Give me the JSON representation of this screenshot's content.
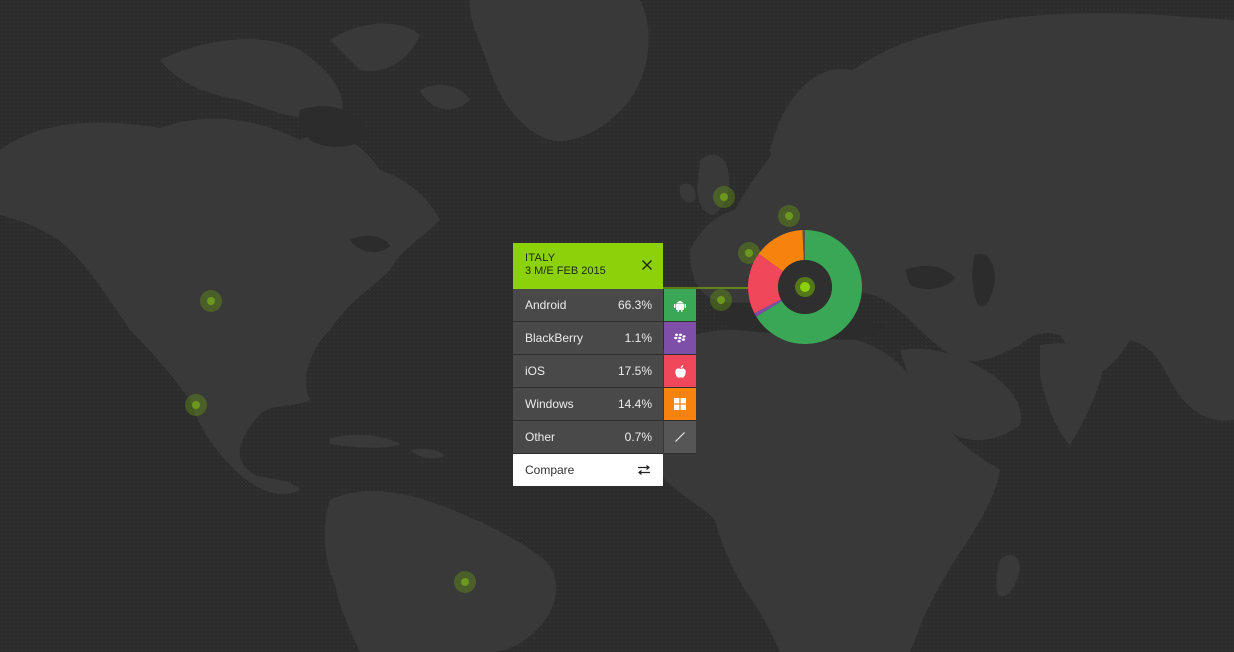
{
  "panel": {
    "country": "ITALY",
    "period": "3 M/E FEB 2015",
    "close_icon": "close-icon",
    "rows": [
      {
        "os": "Android",
        "share": "66.3%",
        "value": 66.3,
        "color": "#3aa757",
        "icon": "android-icon"
      },
      {
        "os": "BlackBerry",
        "share": "1.1%",
        "value": 1.1,
        "color": "#7d4fa8",
        "icon": "blackberry-icon"
      },
      {
        "os": "iOS",
        "share": "17.5%",
        "value": 17.5,
        "color": "#f0475b",
        "icon": "apple-icon"
      },
      {
        "os": "Windows",
        "share": "14.4%",
        "value": 14.4,
        "color": "#f5830e",
        "icon": "windows-icon"
      },
      {
        "os": "Other",
        "share": "0.7%",
        "value": 0.7,
        "color": "#555655",
        "icon": "slash-icon"
      }
    ],
    "compare_label": "Compare",
    "compare_icon": "swap-arrows-icon"
  },
  "colors": {
    "accent": "#8dd10a",
    "background": "#2b2c2b",
    "land": "#383938"
  }
}
